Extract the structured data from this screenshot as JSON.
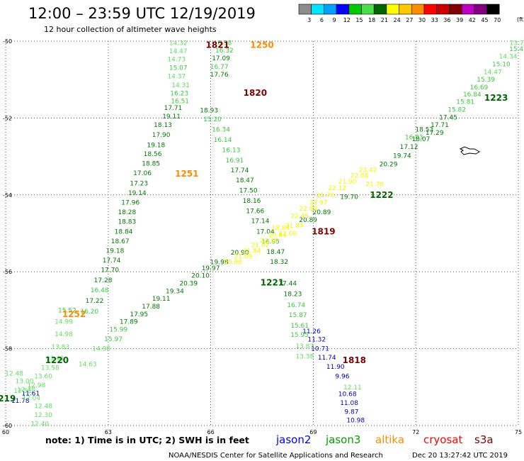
{
  "header": {
    "title": "12:00 – 23:59 UTC 12/19/2019",
    "subtitle": "12 hour collection of altimeter wave heights"
  },
  "colorbar": {
    "colors": [
      "#8c8c8c",
      "#00e5ff",
      "#00a0ff",
      "#0000ff",
      "#00c800",
      "#4ade4a",
      "#006400",
      "#ffff00",
      "#ffc800",
      "#ff8c00",
      "#ff0000",
      "#c80000",
      "#800000",
      "#c000c0",
      "#800080",
      "#000000"
    ],
    "labels": [
      "3",
      "6",
      "9",
      "12",
      "15",
      "18",
      "21",
      "24",
      "27",
      "30",
      "33",
      "36",
      "39",
      "42",
      "45",
      "70"
    ],
    "unit": "(ft)"
  },
  "chart_data": {
    "type": "scatter",
    "title": "12:00 – 23:59 UTC 12/19/2019",
    "xlabel": "",
    "ylabel": "",
    "xlim": [
      60,
      75
    ],
    "ylim": [
      -60,
      -50
    ],
    "x_ticks": [
      "60",
      "63",
      "66",
      "69",
      "72",
      "75"
    ],
    "y_ticks": [
      "-50",
      "-52",
      "-54",
      "-56",
      "-58",
      "-60"
    ],
    "grid": true,
    "series": [
      {
        "name": "jason2",
        "points": [
          {
            "x": 68.95,
            "y": -57.55,
            "v": "11.26"
          },
          {
            "x": 69.1,
            "y": -57.76,
            "v": "11.32"
          },
          {
            "x": 69.2,
            "y": -58.0,
            "v": "10.71"
          },
          {
            "x": 69.4,
            "y": -58.23,
            "v": "11.74"
          },
          {
            "x": 69.65,
            "y": -58.47,
            "v": "11.90"
          },
          {
            "x": 69.85,
            "y": -58.72,
            "v": "9.96"
          },
          {
            "x": 70.0,
            "y": -59.18,
            "v": "10.68"
          },
          {
            "x": 70.05,
            "y": -59.41,
            "v": "11.08"
          },
          {
            "x": 70.12,
            "y": -59.64,
            "v": "9.87"
          },
          {
            "x": 70.24,
            "y": -59.86,
            "v": "10.98"
          },
          {
            "x": 60.43,
            "y": -59.35,
            "v": "11.78"
          },
          {
            "x": 60.73,
            "y": -59.16,
            "v": "11.61"
          }
        ]
      },
      {
        "name": "jason3",
        "points": [
          {
            "x": 65.05,
            "y": -50.05,
            "v": "14.32"
          },
          {
            "x": 65.05,
            "y": -50.26,
            "v": "14.47"
          },
          {
            "x": 65.0,
            "y": -50.47,
            "v": "14.73"
          },
          {
            "x": 65.05,
            "y": -50.69,
            "v": "15.07"
          },
          {
            "x": 65.0,
            "y": -50.91,
            "v": "14.37"
          },
          {
            "x": 65.12,
            "y": -51.14,
            "v": "14.31"
          },
          {
            "x": 65.08,
            "y": -51.36,
            "v": "16.23"
          },
          {
            "x": 65.1,
            "y": -51.56,
            "v": "16.51"
          },
          {
            "x": 64.9,
            "y": -51.73,
            "v": "17.71"
          },
          {
            "x": 64.85,
            "y": -51.96,
            "v": "19.11"
          },
          {
            "x": 64.6,
            "y": -52.18,
            "v": "18.13"
          },
          {
            "x": 64.55,
            "y": -52.44,
            "v": "17.90"
          },
          {
            "x": 64.4,
            "y": -52.7,
            "v": "19.18"
          },
          {
            "x": 64.3,
            "y": -52.93,
            "v": "18.56"
          },
          {
            "x": 64.25,
            "y": -53.18,
            "v": "18.85"
          },
          {
            "x": 64.0,
            "y": -53.43,
            "v": "17.06"
          },
          {
            "x": 63.9,
            "y": -53.7,
            "v": "17.23"
          },
          {
            "x": 63.85,
            "y": -53.95,
            "v": "19.14"
          },
          {
            "x": 63.65,
            "y": -54.2,
            "v": "17.96"
          },
          {
            "x": 63.55,
            "y": -54.45,
            "v": "18.28"
          },
          {
            "x": 63.55,
            "y": -54.7,
            "v": "18.83"
          },
          {
            "x": 63.45,
            "y": -54.95,
            "v": "18.84"
          },
          {
            "x": 63.35,
            "y": -55.2,
            "v": "18.67"
          },
          {
            "x": 63.2,
            "y": -55.45,
            "v": "19.18"
          },
          {
            "x": 63.1,
            "y": -55.7,
            "v": "17.74"
          },
          {
            "x": 63.05,
            "y": -55.95,
            "v": "17.70"
          },
          {
            "x": 62.85,
            "y": -56.22,
            "v": "17.28"
          },
          {
            "x": 62.75,
            "y": -56.48,
            "v": "16.48"
          },
          {
            "x": 62.6,
            "y": -56.75,
            "v": "17.22"
          },
          {
            "x": 62.45,
            "y": -57.03,
            "v": "16.20"
          },
          {
            "x": 66.35,
            "y": -50.05,
            "v": "16.38"
          },
          {
            "x": 66.4,
            "y": -50.24,
            "v": "16.32"
          },
          {
            "x": 66.3,
            "y": -50.44,
            "v": "17.09"
          },
          {
            "x": 66.25,
            "y": -50.66,
            "v": "16.77"
          },
          {
            "x": 66.25,
            "y": -50.87,
            "v": "17.76"
          },
          {
            "x": 65.95,
            "y": -51.8,
            "v": "18.93"
          },
          {
            "x": 66.05,
            "y": -52.03,
            "v": "15.20"
          },
          {
            "x": 66.3,
            "y": -52.3,
            "v": "16.34"
          },
          {
            "x": 66.35,
            "y": -52.56,
            "v": "16.14"
          },
          {
            "x": 66.6,
            "y": -52.83,
            "v": "16.13"
          },
          {
            "x": 66.7,
            "y": -53.1,
            "v": "16.91"
          },
          {
            "x": 66.85,
            "y": -53.36,
            "v": "17.74"
          },
          {
            "x": 67.0,
            "y": -53.62,
            "v": "18.47"
          },
          {
            "x": 67.1,
            "y": -53.88,
            "v": "17.50"
          },
          {
            "x": 67.2,
            "y": -54.15,
            "v": "18.16"
          },
          {
            "x": 67.3,
            "y": -54.42,
            "v": "17.66"
          },
          {
            "x": 67.45,
            "y": -54.68,
            "v": "17.14"
          },
          {
            "x": 67.6,
            "y": -54.95,
            "v": "17.04"
          },
          {
            "x": 67.75,
            "y": -55.21,
            "v": "16.95"
          },
          {
            "x": 67.9,
            "y": -55.48,
            "v": "18.47"
          },
          {
            "x": 68.0,
            "y": -55.74,
            "v": "18.32"
          },
          {
            "x": 68.25,
            "y": -56.3,
            "v": "17.44"
          },
          {
            "x": 68.4,
            "y": -56.58,
            "v": "18.23"
          },
          {
            "x": 68.5,
            "y": -56.86,
            "v": "16.74"
          },
          {
            "x": 68.55,
            "y": -57.12,
            "v": "15.87"
          },
          {
            "x": 68.6,
            "y": -57.4,
            "v": "15.61"
          },
          {
            "x": 68.6,
            "y": -57.64,
            "v": "15.95"
          },
          {
            "x": 68.75,
            "y": -57.93,
            "v": "13.87"
          },
          {
            "x": 68.75,
            "y": -58.2,
            "v": "13.38"
          },
          {
            "x": 70.15,
            "y": -59.0,
            "v": "12.11"
          },
          {
            "x": 60.25,
            "y": -58.64,
            "v": "12.48"
          },
          {
            "x": 60.55,
            "y": -58.85,
            "v": "13.00"
          },
          {
            "x": 60.6,
            "y": -59.06,
            "v": "12.48"
          },
          {
            "x": 60.75,
            "y": -59.28,
            "v": "12.04"
          },
          {
            "x": 61.1,
            "y": -59.49,
            "v": "12.48"
          },
          {
            "x": 61.1,
            "y": -59.72,
            "v": "12.30"
          },
          {
            "x": 61.0,
            "y": -59.95,
            "v": "12.40"
          },
          {
            "x": 60.5,
            "y": -59.1,
            "v": "12.51"
          },
          {
            "x": 60.9,
            "y": -58.95,
            "v": "12.98"
          },
          {
            "x": 61.1,
            "y": -58.72,
            "v": "13.60"
          },
          {
            "x": 61.3,
            "y": -58.5,
            "v": "13.58"
          },
          {
            "x": 61.45,
            "y": -58.25,
            "v": "13.41"
          },
          {
            "x": 61.6,
            "y": -57.95,
            "v": "13.83"
          },
          {
            "x": 61.7,
            "y": -57.62,
            "v": "14.98"
          },
          {
            "x": 61.7,
            "y": -57.3,
            "v": "14.99"
          },
          {
            "x": 61.8,
            "y": -57.0,
            "v": "15.52"
          },
          {
            "x": 62.4,
            "y": -58.4,
            "v": "14.63"
          },
          {
            "x": 62.8,
            "y": -58.0,
            "v": "14.98"
          },
          {
            "x": 63.15,
            "y": -57.75,
            "v": "15.97"
          },
          {
            "x": 63.3,
            "y": -57.5,
            "v": "15.99"
          },
          {
            "x": 63.6,
            "y": -57.3,
            "v": "17.89"
          },
          {
            "x": 63.9,
            "y": -57.1,
            "v": "17.95"
          },
          {
            "x": 64.25,
            "y": -56.9,
            "v": "17.88"
          },
          {
            "x": 64.55,
            "y": -56.7,
            "v": "19.11"
          },
          {
            "x": 64.95,
            "y": -56.5,
            "v": "19.34"
          },
          {
            "x": 65.35,
            "y": -56.3,
            "v": "20.39"
          },
          {
            "x": 65.7,
            "y": -56.1,
            "v": "20.10"
          },
          {
            "x": 66.0,
            "y": -55.9,
            "v": "19.97"
          },
          {
            "x": 66.25,
            "y": -55.75,
            "v": "19.98"
          },
          {
            "x": 66.85,
            "y": -55.5,
            "v": "20.90"
          },
          {
            "x": 68.85,
            "y": -54.65,
            "v": "20.89"
          },
          {
            "x": 69.25,
            "y": -54.45,
            "v": "20.89"
          },
          {
            "x": 70.05,
            "y": -54.05,
            "v": "19.70"
          },
          {
            "x": 71.2,
            "y": -53.2,
            "v": "20.29"
          },
          {
            "x": 71.6,
            "y": -52.98,
            "v": "19.74"
          },
          {
            "x": 71.8,
            "y": -52.75,
            "v": "17.12"
          },
          {
            "x": 72.15,
            "y": -52.55,
            "v": "18.07"
          },
          {
            "x": 72.55,
            "y": -52.38,
            "v": "17.29"
          },
          {
            "x": 72.7,
            "y": -52.18,
            "v": "17.71"
          },
          {
            "x": 72.95,
            "y": -51.98,
            "v": "17.45"
          },
          {
            "x": 73.2,
            "y": -51.78,
            "v": "15.82"
          },
          {
            "x": 73.45,
            "y": -51.58,
            "v": "15.81"
          },
          {
            "x": 73.65,
            "y": -51.38,
            "v": "16.84"
          },
          {
            "x": 73.85,
            "y": -51.2,
            "v": "16.69"
          },
          {
            "x": 74.05,
            "y": -51.0,
            "v": "15.39"
          },
          {
            "x": 74.25,
            "y": -50.8,
            "v": "14.47"
          },
          {
            "x": 74.5,
            "y": -50.6,
            "v": "15.10"
          },
          {
            "x": 74.7,
            "y": -50.4,
            "v": "14.34"
          },
          {
            "x": 75.0,
            "y": -50.2,
            "v": "15.45"
          },
          {
            "x": 74.95,
            "y": -50.05,
            "v": "13.7"
          },
          {
            "x": 71.95,
            "y": -52.5,
            "v": "16.83"
          },
          {
            "x": 72.25,
            "y": -52.3,
            "v": "18.53"
          }
        ]
      },
      {
        "name": "cryosat",
        "points": []
      },
      {
        "name": "s3a",
        "points": []
      },
      {
        "name": "altika",
        "points": [
          {
            "x": 66.65,
            "y": -55.75,
            "v": "20.88"
          },
          {
            "x": 66.95,
            "y": -55.6,
            "v": "21.09"
          },
          {
            "x": 67.2,
            "y": -55.45,
            "v": "21.84"
          },
          {
            "x": 67.45,
            "y": -55.3,
            "v": "21.02"
          },
          {
            "x": 67.7,
            "y": -55.18,
            "v": "22.30"
          },
          {
            "x": 67.95,
            "y": -55.05,
            "v": "20.84"
          },
          {
            "x": 68.05,
            "y": -54.85,
            "v": "18.84"
          },
          {
            "x": 68.25,
            "y": -55.0,
            "v": "22.00"
          },
          {
            "x": 68.45,
            "y": -54.8,
            "v": "21.84"
          },
          {
            "x": 68.6,
            "y": -54.55,
            "v": "22.45"
          },
          {
            "x": 68.85,
            "y": -54.35,
            "v": "22.68"
          },
          {
            "x": 69.15,
            "y": -54.2,
            "v": "22.97"
          },
          {
            "x": 69.35,
            "y": -54.0,
            "v": "21.78"
          },
          {
            "x": 69.7,
            "y": -53.82,
            "v": "22.12"
          },
          {
            "x": 70.0,
            "y": -53.65,
            "v": "21.90"
          },
          {
            "x": 70.35,
            "y": -53.5,
            "v": "22.08"
          },
          {
            "x": 70.6,
            "y": -53.35,
            "v": "23.42"
          },
          {
            "x": 70.8,
            "y": -53.72,
            "v": "21.76"
          }
        ]
      }
    ],
    "pass_labels": [
      {
        "x": 66.2,
        "y": -50.1,
        "text": "1821",
        "color": "#800000"
      },
      {
        "x": 67.5,
        "y": -50.1,
        "text": "1250",
        "color": "#ff8c00"
      },
      {
        "x": 67.3,
        "y": -51.35,
        "text": "1820",
        "color": "#800000"
      },
      {
        "x": 65.3,
        "y": -53.45,
        "text": "1251",
        "color": "#ff8c00"
      },
      {
        "x": 69.3,
        "y": -54.95,
        "text": "1819",
        "color": "#800000"
      },
      {
        "x": 71.0,
        "y": -54.0,
        "text": "1222",
        "color": "#006400"
      },
      {
        "x": 74.35,
        "y": -51.48,
        "text": "1223",
        "color": "#006400"
      },
      {
        "x": 67.8,
        "y": -56.28,
        "text": "1221",
        "color": "#006400"
      },
      {
        "x": 62.0,
        "y": -57.1,
        "text": "1252",
        "color": "#ff8c00"
      },
      {
        "x": 61.5,
        "y": -58.3,
        "text": "1220",
        "color": "#006400"
      },
      {
        "x": 59.95,
        "y": -59.3,
        "text": "1219",
        "color": "#006400"
      },
      {
        "x": 70.2,
        "y": -58.3,
        "text": "1818",
        "color": "#800000"
      }
    ]
  },
  "footer": {
    "note": "note:  1) Time is in UTC;  2) SWH is in feet",
    "satellites": [
      {
        "name": "jason2",
        "color": "#0000ff"
      },
      {
        "name": "jason3",
        "color": "#00a000"
      },
      {
        "name": "altika",
        "color": "#ff8c00"
      },
      {
        "name": "cryosat",
        "color": "#ff0000"
      },
      {
        "name": "s3a",
        "color": "#800000"
      }
    ],
    "credit": "NOAA/NESDIS Center for Satellite Applications and Research",
    "timestamp": "Dec 20 13:27:42 UTC 2019"
  }
}
